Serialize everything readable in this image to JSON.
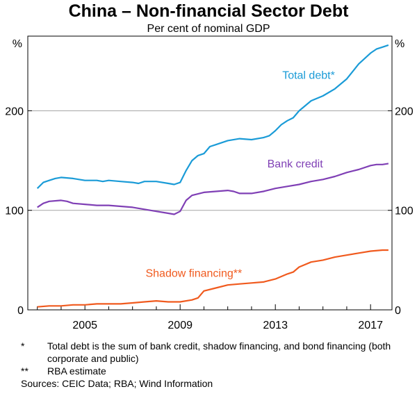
{
  "title": "China – Non-financial Sector Debt",
  "subtitle": "Per cent of nominal GDP",
  "chart_data": {
    "type": "line",
    "title": "China – Non-financial Sector Debt",
    "subtitle": "Per cent of nominal GDP",
    "ylabel_left": "%",
    "ylabel_right": "%",
    "ylim": [
      0,
      275
    ],
    "xlim": [
      2002.6,
      2017.9
    ],
    "x_ticks": [
      2005,
      2009,
      2013,
      2017
    ],
    "y_ticks": [
      0,
      100,
      200
    ],
    "y_gridlines": [
      100,
      200
    ],
    "legend": "inline labels",
    "series": [
      {
        "name": "Total debt*",
        "color": "#1a9bd7",
        "points": [
          [
            2003.0,
            122
          ],
          [
            2003.25,
            128
          ],
          [
            2003.5,
            130
          ],
          [
            2003.75,
            132
          ],
          [
            2004.0,
            133
          ],
          [
            2004.5,
            132
          ],
          [
            2005.0,
            130
          ],
          [
            2005.5,
            130
          ],
          [
            2005.75,
            129
          ],
          [
            2006.0,
            130
          ],
          [
            2006.5,
            129
          ],
          [
            2007.0,
            128
          ],
          [
            2007.25,
            127
          ],
          [
            2007.5,
            129
          ],
          [
            2008.0,
            129
          ],
          [
            2008.5,
            127
          ],
          [
            2008.75,
            126
          ],
          [
            2009.0,
            128
          ],
          [
            2009.25,
            140
          ],
          [
            2009.5,
            150
          ],
          [
            2009.75,
            155
          ],
          [
            2010.0,
            157
          ],
          [
            2010.25,
            164
          ],
          [
            2010.5,
            166
          ],
          [
            2011.0,
            170
          ],
          [
            2011.5,
            172
          ],
          [
            2012.0,
            171
          ],
          [
            2012.5,
            173
          ],
          [
            2012.75,
            175
          ],
          [
            2013.0,
            180
          ],
          [
            2013.25,
            186
          ],
          [
            2013.5,
            190
          ],
          [
            2013.75,
            193
          ],
          [
            2014.0,
            200
          ],
          [
            2014.5,
            210
          ],
          [
            2015.0,
            215
          ],
          [
            2015.5,
            222
          ],
          [
            2016.0,
            232
          ],
          [
            2016.5,
            247
          ],
          [
            2017.0,
            258
          ],
          [
            2017.25,
            262
          ],
          [
            2017.5,
            264
          ],
          [
            2017.75,
            266
          ]
        ]
      },
      {
        "name": "Bank credit",
        "color": "#7f3fb5",
        "points": [
          [
            2003.0,
            103
          ],
          [
            2003.25,
            107
          ],
          [
            2003.5,
            109
          ],
          [
            2004.0,
            110
          ],
          [
            2004.25,
            109
          ],
          [
            2004.5,
            107
          ],
          [
            2005.0,
            106
          ],
          [
            2005.5,
            105
          ],
          [
            2006.0,
            105
          ],
          [
            2006.5,
            104
          ],
          [
            2007.0,
            103
          ],
          [
            2007.5,
            101
          ],
          [
            2008.0,
            99
          ],
          [
            2008.5,
            97
          ],
          [
            2008.75,
            96
          ],
          [
            2009.0,
            99
          ],
          [
            2009.25,
            110
          ],
          [
            2009.5,
            115
          ],
          [
            2010.0,
            118
          ],
          [
            2010.5,
            119
          ],
          [
            2011.0,
            120
          ],
          [
            2011.25,
            119
          ],
          [
            2011.5,
            117
          ],
          [
            2012.0,
            117
          ],
          [
            2012.5,
            119
          ],
          [
            2013.0,
            122
          ],
          [
            2013.5,
            124
          ],
          [
            2014.0,
            126
          ],
          [
            2014.5,
            129
          ],
          [
            2015.0,
            131
          ],
          [
            2015.5,
            134
          ],
          [
            2016.0,
            138
          ],
          [
            2016.5,
            141
          ],
          [
            2017.0,
            145
          ],
          [
            2017.25,
            146
          ],
          [
            2017.5,
            146
          ],
          [
            2017.75,
            147
          ]
        ]
      },
      {
        "name": "Shadow financing**",
        "color": "#f05a1e",
        "points": [
          [
            2003.0,
            3
          ],
          [
            2003.5,
            4
          ],
          [
            2004.0,
            4
          ],
          [
            2004.5,
            5
          ],
          [
            2005.0,
            5
          ],
          [
            2005.5,
            6
          ],
          [
            2006.0,
            6
          ],
          [
            2006.5,
            6
          ],
          [
            2007.0,
            7
          ],
          [
            2007.5,
            8
          ],
          [
            2008.0,
            9
          ],
          [
            2008.5,
            8
          ],
          [
            2008.75,
            8
          ],
          [
            2009.0,
            8
          ],
          [
            2009.5,
            10
          ],
          [
            2009.75,
            12
          ],
          [
            2010.0,
            19
          ],
          [
            2010.5,
            22
          ],
          [
            2011.0,
            25
          ],
          [
            2011.5,
            26
          ],
          [
            2012.0,
            27
          ],
          [
            2012.5,
            28
          ],
          [
            2013.0,
            31
          ],
          [
            2013.5,
            36
          ],
          [
            2013.75,
            38
          ],
          [
            2014.0,
            43
          ],
          [
            2014.5,
            48
          ],
          [
            2015.0,
            50
          ],
          [
            2015.5,
            53
          ],
          [
            2016.0,
            55
          ],
          [
            2016.5,
            57
          ],
          [
            2017.0,
            59
          ],
          [
            2017.5,
            60
          ],
          [
            2017.75,
            60
          ]
        ]
      }
    ]
  },
  "footnotes": [
    {
      "marker": "*",
      "text": "Total debt is the sum of bank credit, shadow financing, and bond financing (both corporate and public)"
    },
    {
      "marker": "**",
      "text": "RBA estimate"
    }
  ],
  "sources": "Sources: CEIC Data; RBA; Wind Information"
}
